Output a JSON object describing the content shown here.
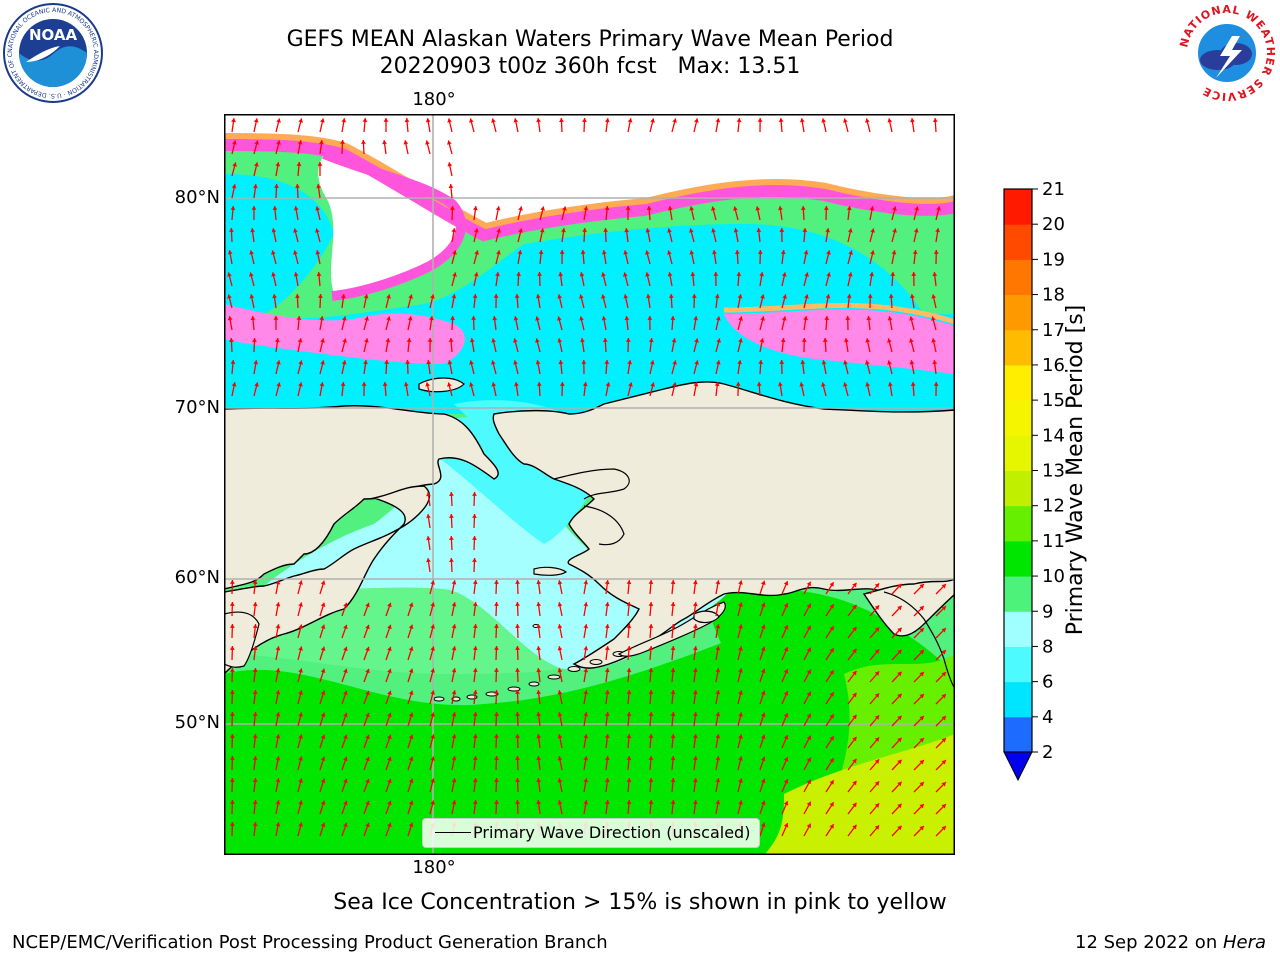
{
  "title": {
    "line1": "GEFS MEAN Alaskan Waters Primary Wave Mean Period",
    "line2": "20220903 t00z 360h fcst   Max: 13.51"
  },
  "map": {
    "lon_label_top": "180°",
    "lon_label_bottom": "180°",
    "lat_labels": [
      "80°N",
      "70°N",
      "60°N",
      "50°N"
    ],
    "legend": "Primary Wave Direction (unscaled)",
    "land_color": "#efecdc",
    "vector_color": "#ff0000",
    "gridline_color": "#b0b0b0"
  },
  "colorbar": {
    "title": "Primary Wave Mean Period [s]",
    "ticks": [
      "2",
      "4",
      "6",
      "8",
      "9",
      "10",
      "11",
      "12",
      "13",
      "14",
      "15",
      "16",
      "17",
      "18",
      "19",
      "20",
      "21"
    ],
    "colors": [
      "#1e6cff",
      "#00e5ff",
      "#4dfbff",
      "#a0ffff",
      "#4df27a",
      "#00e600",
      "#66f000",
      "#c0f000",
      "#e6f500",
      "#f5f500",
      "#ffee00",
      "#ffbb00",
      "#ff9900",
      "#ff7700",
      "#ff4a00",
      "#ff1a00"
    ],
    "under_color": "#0000ee"
  },
  "footer_note": "Sea Ice Concentration > 15% is shown in pink to yellow",
  "credit_left": "NCEP/EMC/Verification Post Processing Product Generation Branch",
  "credit_right_prefix": "12 Sep 2022 on ",
  "credit_right_host": "Hera",
  "logos": {
    "noaa": {
      "text": "NOAA",
      "ring_text": "NATIONAL OCEANIC AND ATMOSPHERIC ADMINISTRATION · U.S. DEPARTMENT OF COMMERCE"
    },
    "nws": {
      "ring_text": "NATIONAL WEATHER SERVICE"
    }
  }
}
